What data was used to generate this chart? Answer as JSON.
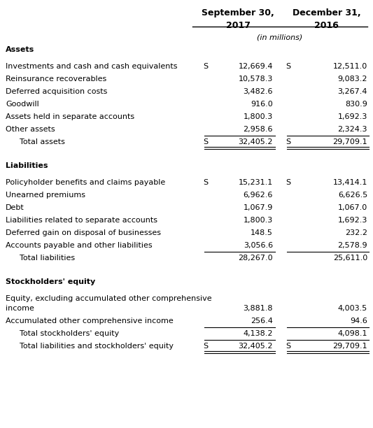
{
  "header_col1": "September 30,",
  "header_col2": "December 31,",
  "subheader_col1": "2017",
  "subheader_col2": "2016",
  "unit_label": "(in millions)",
  "sections": [
    {
      "title": "Assets",
      "rows": [
        {
          "label": "Investments and cash and cash equivalents",
          "dollar1": true,
          "val1": "12,669.4",
          "dollar2": true,
          "val2": "12,511.0",
          "indent": false,
          "line_before": false,
          "double_line": false
        },
        {
          "label": "Reinsurance recoverables",
          "dollar1": false,
          "val1": "10,578.3",
          "dollar2": false,
          "val2": "9,083.2",
          "indent": false,
          "line_before": false,
          "double_line": false
        },
        {
          "label": "Deferred acquisition costs",
          "dollar1": false,
          "val1": "3,482.6",
          "dollar2": false,
          "val2": "3,267.4",
          "indent": false,
          "line_before": false,
          "double_line": false
        },
        {
          "label": "Goodwill",
          "dollar1": false,
          "val1": "916.0",
          "dollar2": false,
          "val2": "830.9",
          "indent": false,
          "line_before": false,
          "double_line": false
        },
        {
          "label": "Assets held in separate accounts",
          "dollar1": false,
          "val1": "1,800.3",
          "dollar2": false,
          "val2": "1,692.3",
          "indent": false,
          "line_before": false,
          "double_line": false
        },
        {
          "label": "Other assets",
          "dollar1": false,
          "val1": "2,958.6",
          "dollar2": false,
          "val2": "2,324.3",
          "indent": false,
          "line_before": false,
          "double_line": false
        },
        {
          "label": "Total assets",
          "dollar1": true,
          "val1": "32,405.2",
          "dollar2": true,
          "val2": "29,709.1",
          "indent": true,
          "line_before": true,
          "double_line": true
        }
      ]
    },
    {
      "title": "Liabilities",
      "rows": [
        {
          "label": "Policyholder benefits and claims payable",
          "dollar1": true,
          "val1": "15,231.1",
          "dollar2": true,
          "val2": "13,414.1",
          "indent": false,
          "line_before": false,
          "double_line": false
        },
        {
          "label": "Unearned premiums",
          "dollar1": false,
          "val1": "6,962.6",
          "dollar2": false,
          "val2": "6,626.5",
          "indent": false,
          "line_before": false,
          "double_line": false
        },
        {
          "label": "Debt",
          "dollar1": false,
          "val1": "1,067.9",
          "dollar2": false,
          "val2": "1,067.0",
          "indent": false,
          "line_before": false,
          "double_line": false
        },
        {
          "label": "Liabilities related to separate accounts",
          "dollar1": false,
          "val1": "1,800.3",
          "dollar2": false,
          "val2": "1,692.3",
          "indent": false,
          "line_before": false,
          "double_line": false
        },
        {
          "label": "Deferred gain on disposal of businesses",
          "dollar1": false,
          "val1": "148.5",
          "dollar2": false,
          "val2": "232.2",
          "indent": false,
          "line_before": false,
          "double_line": false
        },
        {
          "label": "Accounts payable and other liabilities",
          "dollar1": false,
          "val1": "3,056.6",
          "dollar2": false,
          "val2": "2,578.9",
          "indent": false,
          "line_before": false,
          "double_line": false
        },
        {
          "label": "Total liabilities",
          "dollar1": false,
          "val1": "28,267.0",
          "dollar2": false,
          "val2": "25,611.0",
          "indent": true,
          "line_before": true,
          "double_line": false
        }
      ]
    },
    {
      "title": "Stockholders' equity",
      "rows": [
        {
          "label": "Equity, excluding accumulated other comprehensive\nincome",
          "dollar1": false,
          "val1": "3,881.8",
          "dollar2": false,
          "val2": "4,003.5",
          "indent": false,
          "line_before": false,
          "double_line": false,
          "multiline": true
        },
        {
          "label": "Accumulated other comprehensive income",
          "dollar1": false,
          "val1": "256.4",
          "dollar2": false,
          "val2": "94.6",
          "indent": false,
          "line_before": false,
          "double_line": false
        },
        {
          "label": "Total stockholders' equity",
          "dollar1": false,
          "val1": "4,138.2",
          "dollar2": false,
          "val2": "4,098.1",
          "indent": true,
          "line_before": true,
          "double_line": false
        },
        {
          "label": "Total liabilities and stockholders' equity",
          "dollar1": true,
          "val1": "32,405.2",
          "dollar2": true,
          "val2": "29,709.1",
          "indent": true,
          "line_before": true,
          "double_line": true
        }
      ]
    }
  ],
  "bg_color": "#ffffff",
  "text_color": "#000000",
  "font_size": 8.0,
  "header_font_size": 9.0
}
